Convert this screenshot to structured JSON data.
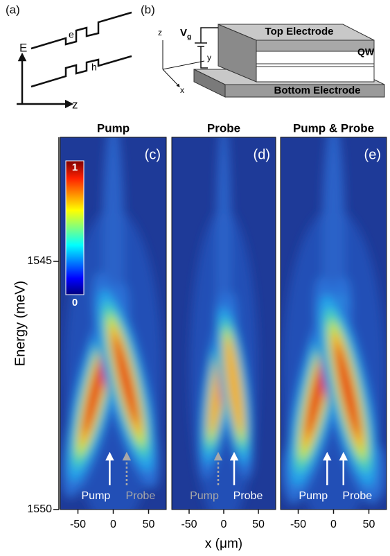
{
  "schematic_a": {
    "label": "(a)",
    "axis_e": "E",
    "axis_z": "z",
    "electron": "e",
    "hole": "h"
  },
  "schematic_b": {
    "label": "(b)",
    "top_electrode": "Top Electrode",
    "bottom_electrode": "Bottom Electrode",
    "qw": "QW",
    "voltage": "V",
    "voltage_sub": "g",
    "axis_x": "x",
    "axis_y": "y",
    "axis_z": "z"
  },
  "chart_data": [
    {
      "type": "heatmap",
      "title": "Pump",
      "panel_label": "(c)",
      "xlim": [
        -75,
        75
      ],
      "xticks": [
        -50,
        0,
        50
      ],
      "ylim": [
        1542.5,
        1550
      ],
      "yticks": [
        1545,
        1550
      ],
      "ylabel": "Energy (meV)",
      "colorbar": {
        "ticks": [
          0,
          1
        ]
      },
      "arrows": [
        {
          "label": "Pump",
          "x": -5,
          "color": "#ffffff",
          "dashed": false
        },
        {
          "label": "Probe",
          "x": 19,
          "color": "#a8a8a8",
          "dashed": true
        }
      ]
    },
    {
      "type": "heatmap",
      "title": "Probe",
      "panel_label": "(d)",
      "xlim": [
        -75,
        75
      ],
      "xticks": [
        -50,
        0,
        50
      ],
      "ylim": [
        1542.5,
        1550
      ],
      "xlabel": "x (μm)",
      "arrows": [
        {
          "label": "Pump",
          "x": -8,
          "color": "#a8a8a8",
          "dashed": true
        },
        {
          "label": "Probe",
          "x": 15,
          "color": "#ffffff",
          "dashed": false
        }
      ]
    },
    {
      "type": "heatmap",
      "title": "Pump & Probe",
      "panel_label": "(e)",
      "xlim": [
        -75,
        75
      ],
      "xticks": [
        -50,
        0,
        50
      ],
      "ylim": [
        1542.5,
        1550
      ],
      "arrows": [
        {
          "label": "Pump",
          "x": -9,
          "color": "#ffffff",
          "dashed": false
        },
        {
          "label": "Probe",
          "x": 14,
          "color": "#ffffff",
          "dashed": false
        }
      ]
    }
  ]
}
